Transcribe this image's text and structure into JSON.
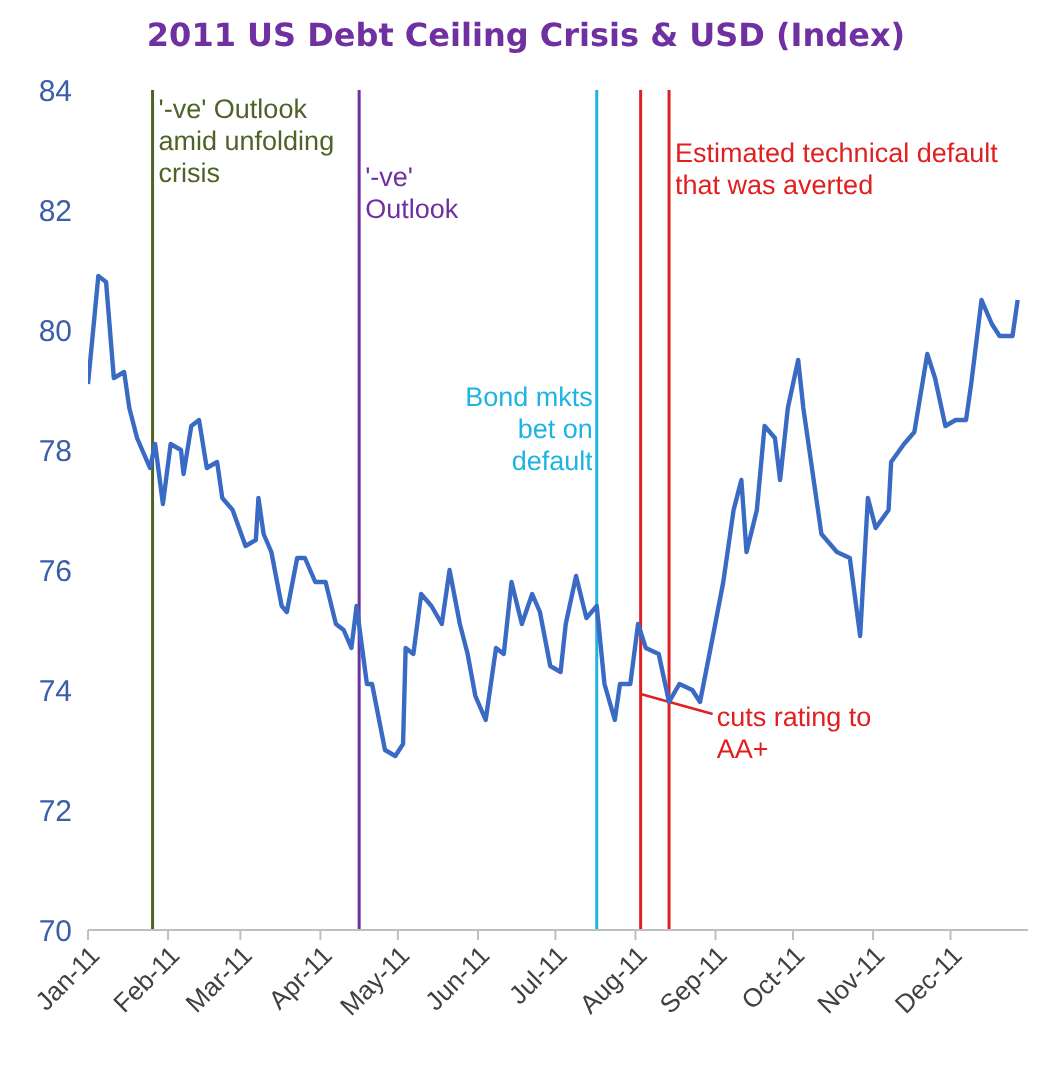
{
  "chart_data": {
    "type": "line",
    "title": "2011 US Debt Ceiling Crisis & USD (Index)",
    "x": [
      "2011-01-01",
      "2011-01-05",
      "2011-01-08",
      "2011-01-11",
      "2011-01-15",
      "2011-01-17",
      "2011-01-20",
      "2011-01-25",
      "2011-01-27",
      "2011-01-30",
      "2011-02-02",
      "2011-02-06",
      "2011-02-07",
      "2011-02-10",
      "2011-02-13",
      "2011-02-16",
      "2011-02-20",
      "2011-02-22",
      "2011-02-26",
      "2011-03-03",
      "2011-03-07",
      "2011-03-08",
      "2011-03-10",
      "2011-03-13",
      "2011-03-17",
      "2011-03-19",
      "2011-03-23",
      "2011-03-26",
      "2011-03-30",
      "2011-04-03",
      "2011-04-07",
      "2011-04-10",
      "2011-04-13",
      "2011-04-15",
      "2011-04-19",
      "2011-04-21",
      "2011-04-26",
      "2011-04-30",
      "2011-05-03",
      "2011-05-04",
      "2011-05-07",
      "2011-05-10",
      "2011-05-14",
      "2011-05-18",
      "2011-05-21",
      "2011-05-25",
      "2011-05-28",
      "2011-05-31",
      "2011-06-04",
      "2011-06-08",
      "2011-06-11",
      "2011-06-14",
      "2011-06-18",
      "2011-06-22",
      "2011-06-25",
      "2011-06-29",
      "2011-07-03",
      "2011-07-05",
      "2011-07-09",
      "2011-07-13",
      "2011-07-17",
      "2011-07-20",
      "2011-07-24",
      "2011-07-26",
      "2011-07-30",
      "2011-08-02",
      "2011-08-05",
      "2011-08-10",
      "2011-08-14",
      "2011-08-18",
      "2011-08-23",
      "2011-08-26",
      "2011-08-31",
      "2011-09-04",
      "2011-09-08",
      "2011-09-11",
      "2011-09-13",
      "2011-09-17",
      "2011-09-20",
      "2011-09-24",
      "2011-09-26",
      "2011-09-29",
      "2011-10-03",
      "2011-10-05",
      "2011-10-09",
      "2011-10-12",
      "2011-10-18",
      "2011-10-23",
      "2011-10-27",
      "2011-10-30",
      "2011-11-02",
      "2011-11-07",
      "2011-11-08",
      "2011-11-13",
      "2011-11-17",
      "2011-11-22",
      "2011-11-25",
      "2011-11-29",
      "2011-12-03",
      "2011-12-07",
      "2011-12-09",
      "2011-12-13",
      "2011-12-17",
      "2011-12-20",
      "2011-12-25",
      "2011-12-27"
    ],
    "series": [
      {
        "color": "#3a6bc4",
        "values": [
          79.1,
          80.9,
          80.8,
          79.2,
          79.3,
          78.7,
          78.2,
          77.7,
          78.1,
          77.1,
          78.1,
          78.0,
          77.6,
          78.4,
          78.5,
          77.7,
          77.8,
          77.2,
          77.0,
          76.4,
          76.5,
          77.2,
          76.6,
          76.3,
          75.4,
          75.3,
          76.2,
          76.2,
          75.8,
          75.8,
          75.1,
          75.0,
          74.7,
          75.4,
          74.1,
          74.1,
          73.0,
          72.9,
          73.1,
          74.7,
          74.6,
          75.6,
          75.4,
          75.1,
          76.0,
          75.1,
          74.6,
          73.9,
          73.5,
          74.7,
          74.6,
          75.8,
          75.1,
          75.6,
          75.3,
          74.4,
          74.3,
          75.1,
          75.9,
          75.2,
          75.4,
          74.1,
          73.5,
          74.1,
          74.1,
          75.1,
          74.7,
          74.6,
          73.8,
          74.1,
          74.0,
          73.8,
          74.9,
          75.8,
          77.0,
          77.5,
          76.3,
          77.0,
          78.4,
          78.2,
          77.5,
          78.7,
          79.5,
          78.7,
          77.5,
          76.6,
          76.3,
          76.2,
          74.9,
          77.2,
          76.7,
          77.0,
          77.8,
          78.1,
          78.3,
          79.6,
          79.2,
          78.4,
          78.5,
          78.5,
          79.1,
          80.5,
          80.1,
          79.9,
          79.9,
          80.5
        ]
      }
    ],
    "xlim": [
      "2011-01-01",
      "2011-12-31"
    ],
    "xticks": [
      {
        "value": "2011-01-01",
        "label": "Jan-11"
      },
      {
        "value": "2011-02-01",
        "label": "Feb-11"
      },
      {
        "value": "2011-03-01",
        "label": "Mar-11"
      },
      {
        "value": "2011-04-01",
        "label": "Apr-11"
      },
      {
        "value": "2011-05-01",
        "label": "May-11"
      },
      {
        "value": "2011-06-01",
        "label": "Jun-11"
      },
      {
        "value": "2011-07-01",
        "label": "Jul-11"
      },
      {
        "value": "2011-08-01",
        "label": "Aug-11"
      },
      {
        "value": "2011-09-01",
        "label": "Sep-11"
      },
      {
        "value": "2011-10-01",
        "label": "Oct-11"
      },
      {
        "value": "2011-11-01",
        "label": "Nov-11"
      },
      {
        "value": "2011-12-01",
        "label": "Dec-11"
      }
    ],
    "ylim": [
      70,
      84
    ],
    "yticks": [
      70,
      72,
      74,
      76,
      78,
      80,
      82,
      84
    ],
    "ref_lines": [
      {
        "axis": "x",
        "value": "2011-01-26",
        "label": "'-ve' Outlook amid unfolding crisis",
        "color": "#4f6228"
      },
      {
        "axis": "x",
        "value": "2011-04-16",
        "label": "'-ve' Outlook",
        "color": "#7030a0"
      },
      {
        "axis": "x",
        "value": "2011-07-17",
        "label": "Bond mkts bet on default",
        "color": "#1fb4e0"
      },
      {
        "axis": "x",
        "value": "2011-08-03",
        "label": "cuts rating to AA+",
        "color": "#e02020"
      },
      {
        "axis": "x",
        "value": "2011-08-14",
        "label": "Estimated technical default that was averted",
        "color": "#e02020"
      }
    ],
    "grid": false,
    "legend": false,
    "marker": "none",
    "line_style": "solid"
  }
}
